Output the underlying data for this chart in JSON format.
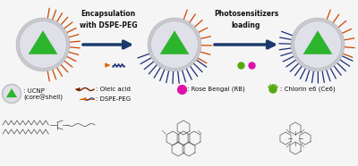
{
  "bg_color": "#f5f5f5",
  "arrow_color": "#1a3a6b",
  "arrow_text1": "Encapsulation\nwith DSPE-PEG",
  "arrow_text2": "Photosensitizers\nloading",
  "legend_ucnp_line1": ": UCNP",
  "legend_ucnp_line2": "(core@shell)",
  "legend_oleic": ": Oleic acid",
  "legend_dspe": ": DSPE-PEG",
  "legend_rb": ": Rose Bengal (RB)",
  "legend_ce6": ": Chlorin e6 (Ce6)",
  "ucnp_shell_outer_color": "#c8c8d0",
  "ucnp_shell_inner_color": "#e0e0e8",
  "ucnp_core_color": "#2db52d",
  "spike_orange_color": "#cc4400",
  "spike_blue_color": "#1a2d7a",
  "rb_color": "#e010aa",
  "ce6_color": "#55aa10",
  "dspe_orange_color": "#dd6600",
  "oleic_dark_color": "#772200",
  "text_color": "#111111",
  "struct_color": "#555555"
}
